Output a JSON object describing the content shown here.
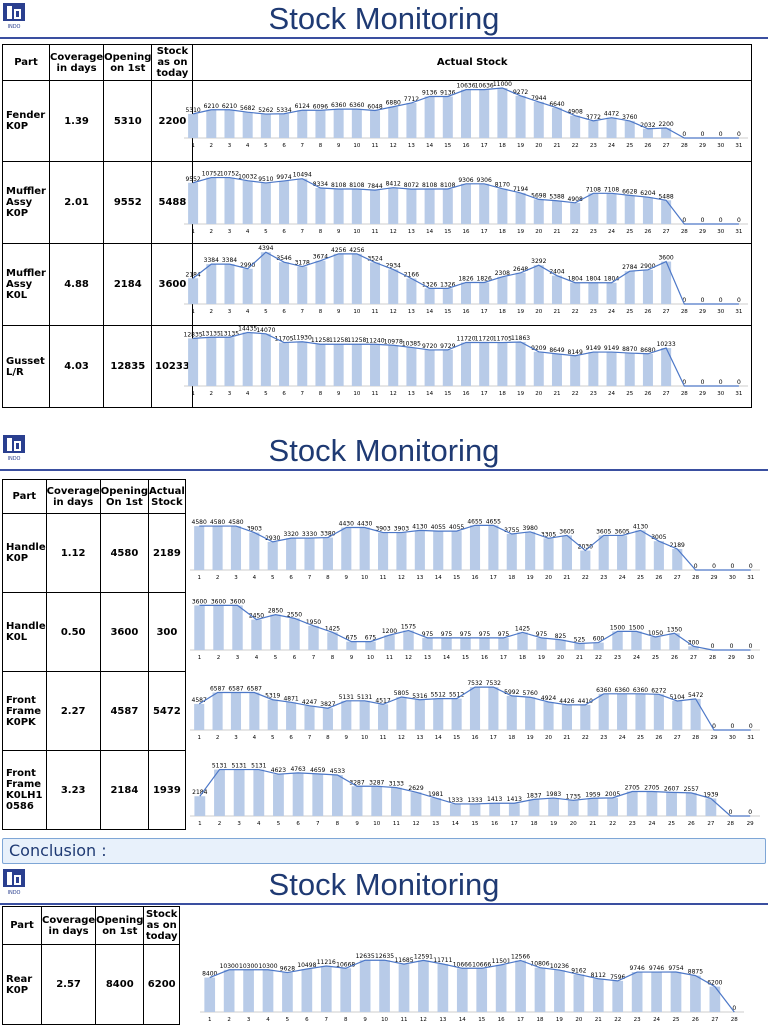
{
  "brand": {
    "logo_text": "INDO",
    "accent": "#1f3a73",
    "bar_color": "#b8cbe8",
    "line_color": "#4d78c8"
  },
  "sections": [
    {
      "title": "Stock Monitoring",
      "headers": {
        "part": "Part",
        "coverage": "Coverage in days",
        "opening": "Opening on 1st",
        "stock": "Stock as on today",
        "chart": "Actual Stock"
      },
      "rows": [
        {
          "part": "Fender K0P",
          "coverage": "1.39",
          "opening": "5310",
          "stock": "2200",
          "chart_data": {
            "type": "bar",
            "x": [
              1,
              2,
              3,
              4,
              5,
              6,
              7,
              8,
              9,
              10,
              11,
              12,
              13,
              14,
              15,
              16,
              17,
              18,
              19,
              20,
              21,
              22,
              23,
              24,
              25,
              26,
              27,
              28,
              29,
              30,
              31
            ],
            "values": [
              5310,
              6210,
              6210,
              5682,
              5262,
              5334,
              6124,
              6096,
              6360,
              6360,
              6048,
              6880,
              7712,
              9136,
              9136,
              10636,
              10636,
              11000,
              9272,
              7944,
              6640,
              4908,
              3772,
              4472,
              3760,
              2032,
              2200,
              0,
              0,
              0,
              0
            ]
          }
        },
        {
          "part": "Muffler Assy K0P",
          "coverage": "2.01",
          "opening": "9552",
          "stock": "5488",
          "chart_data": {
            "type": "bar",
            "x": [
              1,
              2,
              3,
              4,
              5,
              6,
              7,
              8,
              9,
              10,
              11,
              12,
              13,
              14,
              15,
              16,
              17,
              18,
              19,
              20,
              21,
              22,
              23,
              24,
              25,
              26,
              27,
              28,
              29,
              30,
              31
            ],
            "values": [
              9552,
              10752,
              10752,
              10032,
              9510,
              9974,
              10494,
              8334,
              8108,
              8108,
              7844,
              8412,
              8072,
              8108,
              8108,
              9306,
              9306,
              8170,
              7194,
              5698,
              5388,
              4908,
              7108,
              7108,
              6628,
              6204,
              5488,
              0,
              0,
              0,
              0
            ]
          }
        },
        {
          "part": "Muffler Assy K0L",
          "coverage": "4.88",
          "opening": "2184",
          "stock": "3600",
          "chart_data": {
            "type": "bar",
            "x": [
              1,
              2,
              3,
              4,
              5,
              6,
              7,
              8,
              9,
              10,
              11,
              12,
              13,
              14,
              15,
              16,
              17,
              18,
              19,
              20,
              21,
              22,
              23,
              24,
              25,
              26,
              27,
              28,
              29,
              30,
              31
            ],
            "values": [
              2184,
              3384,
              3384,
              2990,
              4394,
              3546,
              3178,
              3674,
              4256,
              4256,
              3524,
              2934,
              2166,
              1326,
              1326,
              1826,
              1826,
              2308,
              2648,
              3292,
              2404,
              1804,
              1804,
              1804,
              2784,
              2900,
              3600,
              0,
              0,
              0,
              0
            ]
          }
        },
        {
          "part": "Gusset L/R",
          "coverage": "4.03",
          "opening": "12835",
          "stock": "10233",
          "chart_data": {
            "type": "bar",
            "x": [
              1,
              2,
              3,
              4,
              5,
              6,
              7,
              8,
              9,
              10,
              11,
              12,
              13,
              14,
              15,
              16,
              17,
              18,
              19,
              20,
              21,
              22,
              23,
              24,
              25,
              26,
              27,
              28,
              29,
              30,
              31
            ],
            "values": [
              12835,
              13135,
              13135,
              14435,
              14070,
              11705,
              11930,
              11258,
              11258,
              11258,
              11240,
              10978,
              10385,
              9720,
              9729,
              11720,
              11720,
              11705,
              11863,
              9209,
              8649,
              8149,
              9149,
              9149,
              8870,
              8680,
              10233,
              0,
              0,
              0,
              0
            ]
          }
        }
      ]
    },
    {
      "title": "Stock Monitoring",
      "headers": {
        "part": "Part",
        "coverage": "Coverage in days",
        "opening": "Opening On 1st",
        "stock": "Actual Stock"
      },
      "rows": [
        {
          "part": "Handle K0P",
          "coverage": "1.12",
          "opening": "4580",
          "stock": "2189",
          "chart_data": {
            "type": "bar",
            "x": [
              1,
              2,
              3,
              4,
              5,
              6,
              7,
              8,
              9,
              10,
              11,
              12,
              13,
              14,
              15,
              16,
              17,
              18,
              19,
              20,
              21,
              22,
              23,
              24,
              25,
              26,
              27,
              28,
              29,
              30,
              31
            ],
            "values": [
              4580,
              4580,
              4580,
              3903,
              2930,
              3320,
              3330,
              3380,
              4430,
              4430,
              3903,
              3903,
              4130,
              4055,
              4055,
              4655,
              4655,
              3755,
              3980,
              3305,
              3605,
              2030,
              3605,
              3605,
              4130,
              3005,
              2189,
              0,
              0,
              0,
              0
            ]
          }
        },
        {
          "part": "Handle K0L",
          "coverage": "0.50",
          "opening": "3600",
          "stock": "300",
          "chart_data": {
            "type": "bar",
            "x": [
              1,
              2,
              3,
              4,
              5,
              6,
              7,
              8,
              9,
              10,
              11,
              12,
              13,
              14,
              15,
              16,
              17,
              18,
              19,
              20,
              21,
              22,
              23,
              24,
              25,
              26,
              27,
              28,
              29,
              30
            ],
            "values": [
              3600,
              3600,
              3600,
              2450,
              2850,
              2550,
              1950,
              1425,
              675,
              675,
              1200,
              1575,
              975,
              975,
              975,
              975,
              975,
              1425,
              975,
              825,
              525,
              600,
              1500,
              1500,
              1050,
              1350,
              300,
              0,
              0,
              0
            ]
          }
        },
        {
          "part": "Front Frame K0PK",
          "coverage": "2.27",
          "opening": "4587",
          "stock": "5472",
          "chart_data": {
            "type": "bar",
            "x": [
              1,
              2,
              3,
              4,
              5,
              6,
              7,
              8,
              9,
              10,
              11,
              12,
              13,
              14,
              15,
              16,
              17,
              18,
              19,
              20,
              21,
              22,
              23,
              24,
              25,
              26,
              27,
              28,
              29,
              30,
              31
            ],
            "values": [
              4587,
              6587,
              6587,
              6587,
              5319,
              4871,
              4247,
              3827,
              5131,
              5131,
              4517,
              5805,
              5316,
              5512,
              5512,
              7532,
              7532,
              5992,
              5760,
              4924,
              4426,
              4410,
              6360,
              6360,
              6360,
              6272,
              5104,
              5472,
              0,
              0,
              0
            ]
          }
        },
        {
          "part": "Front Frame K0LH1 0586",
          "coverage": "3.23",
          "opening": "2184",
          "stock": "1939",
          "chart_data": {
            "type": "bar",
            "x": [
              1,
              2,
              3,
              4,
              5,
              6,
              7,
              8,
              9,
              10,
              11,
              12,
              13,
              14,
              15,
              16,
              17,
              18,
              19,
              20,
              21,
              22,
              23,
              24,
              25,
              26,
              27,
              28,
              29
            ],
            "values": [
              2184,
              5131,
              5131,
              5131,
              4623,
              4763,
              4659,
              4533,
              3287,
              3287,
              3133,
              2629,
              1981,
              1333,
              1333,
              1413,
              1413,
              1837,
              1983,
              1735,
              1959,
              2005,
              2705,
              2705,
              2607,
              2557,
              1939,
              0,
              0
            ]
          }
        }
      ],
      "conclusion": "Conclusion :"
    },
    {
      "title": "Stock Monitoring",
      "headers": {
        "part": "Part",
        "coverage": "Coverage in days",
        "opening": "Opening on 1st",
        "stock": "Stock as on today"
      },
      "rows": [
        {
          "part": "Rear K0P",
          "coverage": "2.57",
          "opening": "8400",
          "stock": "6200",
          "chart_data": {
            "type": "bar",
            "x": [
              1,
              2,
              3,
              4,
              5,
              6,
              7,
              8,
              9,
              10,
              11,
              12,
              13,
              14,
              15,
              16,
              17,
              18,
              19,
              20,
              21,
              22,
              23,
              24,
              25,
              26,
              27,
              28
            ],
            "values": [
              8400,
              10300,
              10300,
              10300,
              9628,
              10498,
              11216,
              10668,
              12635,
              12635,
              11685,
              12591,
              11711,
              10666,
              10666,
              11501,
              12566,
              10806,
              10236,
              9162,
              8112,
              7596,
              9746,
              9746,
              9754,
              8875,
              6200,
              0
            ]
          }
        }
      ]
    }
  ]
}
